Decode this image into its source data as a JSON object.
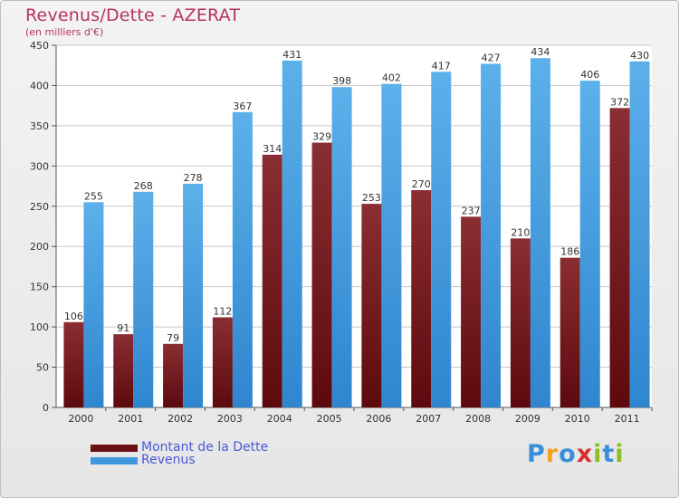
{
  "title": "Revenus/Dette - AZERAT",
  "subtitle": "(en milliers d'€)",
  "chart_data": {
    "type": "bar",
    "title": "Revenus/Dette - AZERAT",
    "ylabel": "(en milliers d'€)",
    "xlabel": "",
    "ylim": [
      0,
      450
    ],
    "yticks": [
      0,
      50,
      100,
      150,
      200,
      250,
      300,
      350,
      400,
      450
    ],
    "grid": true,
    "legend_position": "bottom-left",
    "categories": [
      "2000",
      "2001",
      "2002",
      "2003",
      "2004",
      "2005",
      "2006",
      "2007",
      "2008",
      "2009",
      "2010",
      "2011"
    ],
    "series": [
      {
        "name": "Montant de la Dette",
        "color": "#7a1f25",
        "values": [
          106,
          91,
          79,
          112,
          314,
          329,
          253,
          270,
          237,
          210,
          186,
          372
        ]
      },
      {
        "name": "Revenus",
        "color": "#4fa3e0",
        "values": [
          255,
          268,
          278,
          367,
          431,
          398,
          402,
          417,
          427,
          434,
          406,
          430
        ]
      }
    ]
  },
  "legend": [
    {
      "label": "Montant de la Dette",
      "color": "#6b0f14"
    },
    {
      "label": "Revenus",
      "color": "#3f98dc"
    }
  ],
  "logo": {
    "letters": [
      "P",
      "r",
      "o",
      "x",
      "i",
      "t",
      "i"
    ],
    "colors": [
      "#3a8fd8",
      "#f0a31c",
      "#3a8fd8",
      "#d8302f",
      "#8bbf2a",
      "#3a8fd8",
      "#8bbf2a"
    ]
  }
}
